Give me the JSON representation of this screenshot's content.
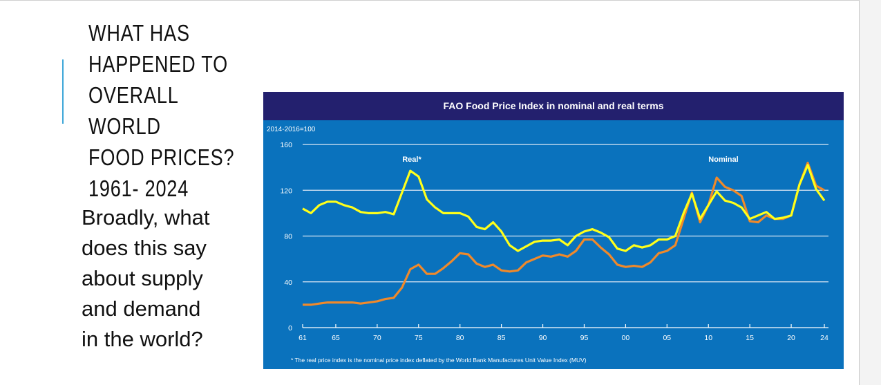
{
  "slide": {
    "title": "WHAT HAS\nHAPPENED TO\nOVERALL WORLD\nFOOD PRICES?\n1961- 2024",
    "body": "Broadly, what\ndoes this say\nabout supply\nand demand\nin the world?"
  },
  "chart_data": {
    "type": "line",
    "title": "FAO Food Price Index in nominal and real terms",
    "ylabel": "2014-2016=100",
    "ylim": [
      0,
      160
    ],
    "yticks": [
      "0",
      "40",
      "80",
      "120",
      "160"
    ],
    "xticks": [
      "61",
      "65",
      "70",
      "75",
      "80",
      "85",
      "90",
      "95",
      "00",
      "05",
      "10",
      "15",
      "20",
      "24"
    ],
    "grid": true,
    "footnote": "* The real price index is the nominal price index deflated by the World Bank Manufactures Unit Value Index (MUV)",
    "x_start": 1961,
    "x_end": 2024,
    "series": [
      {
        "name": "Real*",
        "color": "#ffff1a",
        "values": [
          104,
          100,
          107,
          110,
          110,
          107,
          105,
          101,
          100,
          100,
          101,
          99,
          118,
          137,
          132,
          112,
          105,
          100,
          100,
          100,
          97,
          88,
          86,
          92,
          84,
          72,
          67,
          71,
          75,
          76,
          76,
          77,
          72,
          80,
          84,
          86,
          83,
          79,
          69,
          67,
          72,
          70,
          72,
          77,
          77,
          80,
          100,
          117,
          95,
          107,
          119,
          111,
          109,
          105,
          95,
          98,
          101,
          95,
          96,
          98,
          125,
          142,
          121,
          111
        ]
      },
      {
        "name": "Nominal",
        "color": "#f0892a",
        "values": [
          20,
          20,
          21,
          22,
          22,
          22,
          22,
          21,
          22,
          23,
          25,
          26,
          35,
          51,
          55,
          47,
          47,
          52,
          58,
          65,
          64,
          56,
          53,
          55,
          50,
          49,
          50,
          57,
          60,
          63,
          62,
          64,
          62,
          67,
          77,
          77,
          70,
          64,
          55,
          53,
          54,
          53,
          57,
          65,
          67,
          72,
          95,
          118,
          92,
          107,
          131,
          123,
          120,
          115,
          93,
          92,
          98,
          95,
          95,
          98,
          125,
          144,
          124,
          120
        ]
      }
    ]
  }
}
